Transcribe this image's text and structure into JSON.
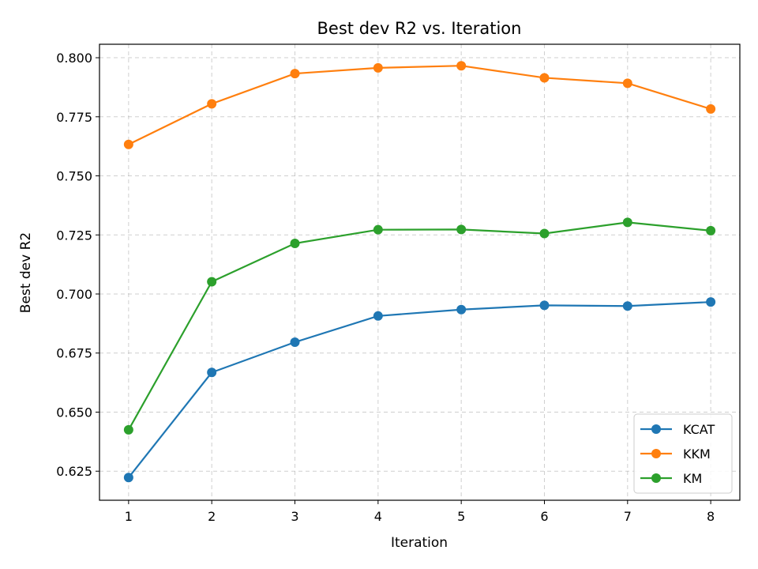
{
  "chart_data": {
    "type": "line",
    "title": "Best dev R2 vs. Iteration",
    "xlabel": "Iteration",
    "ylabel": "Best dev R2",
    "x": [
      1,
      2,
      3,
      4,
      5,
      6,
      7,
      8
    ],
    "xticks": [
      "1",
      "2",
      "3",
      "4",
      "5",
      "6",
      "7",
      "8"
    ],
    "xlim": [
      0.65,
      8.35
    ],
    "ylim": [
      0.6127,
      0.8057
    ],
    "yticks": [
      "0.625",
      "0.650",
      "0.675",
      "0.700",
      "0.725",
      "0.750",
      "0.775",
      "0.800"
    ],
    "grid": true,
    "legend_position": "lower-right",
    "series": [
      {
        "name": "KCAT",
        "color": "#1f77b4",
        "values": [
          0.6223,
          0.6668,
          0.6796,
          0.6907,
          0.6934,
          0.6952,
          0.6949,
          0.6966
        ]
      },
      {
        "name": "KKM",
        "color": "#ff7f0e",
        "values": [
          0.7633,
          0.7805,
          0.7933,
          0.7957,
          0.7966,
          0.7915,
          0.7892,
          0.7783
        ]
      },
      {
        "name": "KM",
        "color": "#2ca02c",
        "values": [
          0.6425,
          0.7052,
          0.7214,
          0.7272,
          0.7273,
          0.7256,
          0.7303,
          0.7268
        ]
      }
    ]
  }
}
